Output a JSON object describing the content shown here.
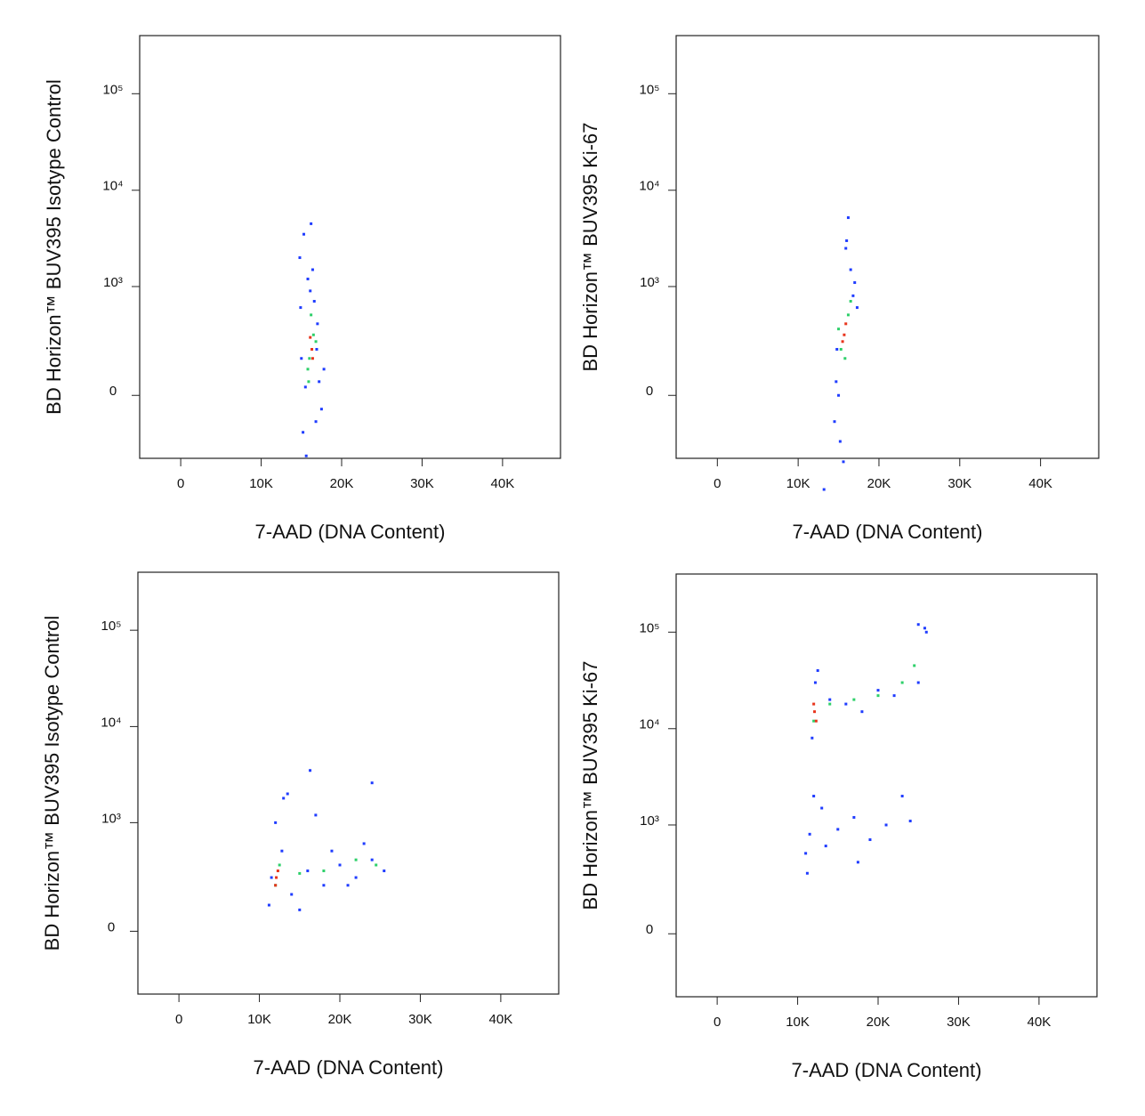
{
  "chart_data": [
    {
      "type": "scatter",
      "x_label": "7-AAD (DNA Content)",
      "y_label": "BD Horizon™ BUV395 Isotype Control",
      "yscale": "biexponential",
      "xlim": [
        -5100,
        47200
      ],
      "ylim": [
        -320,
        400000
      ],
      "xticks": [
        0,
        {
          "value": 10000,
          "label": "10K"
        },
        {
          "value": 20000,
          "label": "20K"
        },
        {
          "value": 30000,
          "label": "30K"
        },
        {
          "value": 40000,
          "label": "40K"
        }
      ],
      "yticks": [
        0,
        {
          "value": 1000,
          "label": "10³"
        },
        {
          "value": 10000,
          "label": "10⁴"
        },
        {
          "value": 100000,
          "label": "10⁵"
        }
      ],
      "series": [
        {
          "color": "#1f3cff",
          "x": [
            15200,
            16800,
            15500,
            17200,
            14900,
            16100,
            17000,
            15800,
            16400,
            15300,
            16900,
            16200,
            17500,
            15000,
            16600,
            15600,
            17800,
            14800
          ],
          "y": [
            -150,
            -100,
            30,
            50,
            600,
            900,
            400,
            1200,
            1500,
            3500,
            200,
            4500,
            -50,
            150,
            700,
            -300,
            100,
            2000
          ]
        },
        {
          "color": "#2ed06a",
          "x": [
            15800,
            16500,
            16200,
            15900,
            16800,
            16000
          ],
          "y": [
            100,
            300,
            500,
            50,
            250,
            150
          ]
        },
        {
          "color": "#e8341c",
          "x": [
            16300,
            16100,
            16400
          ],
          "y": [
            200,
            280,
            150
          ]
        }
      ]
    },
    {
      "type": "scatter",
      "x_label": "7-AAD (DNA Content)",
      "y_label": "BD Horizon™ BUV395 Ki-67",
      "yscale": "biexponential",
      "xlim": [
        -5100,
        47200
      ],
      "ylim": [
        -320,
        400000
      ],
      "xticks": [
        0,
        {
          "value": 10000,
          "label": "10K"
        },
        {
          "value": 20000,
          "label": "20K"
        },
        {
          "value": 30000,
          "label": "30K"
        },
        {
          "value": 40000,
          "label": "40K"
        }
      ],
      "yticks": [
        0,
        {
          "value": 1000,
          "label": "10³"
        },
        {
          "value": 10000,
          "label": "10⁴"
        },
        {
          "value": 100000,
          "label": "10⁵"
        }
      ],
      "series": [
        {
          "color": "#1f3cff",
          "x": [
            14500,
            16800,
            15000,
            17000,
            15200,
            16500,
            14800,
            17300,
            15900,
            16200,
            14700,
            15600,
            13200,
            16000
          ],
          "y": [
            -100,
            800,
            0,
            1100,
            -200,
            1500,
            200,
            600,
            2500,
            5200,
            50,
            -350,
            -700,
            3000
          ]
        },
        {
          "color": "#2ed06a",
          "x": [
            15300,
            16200,
            15800,
            15000,
            16500
          ],
          "y": [
            200,
            500,
            150,
            350,
            700
          ]
        },
        {
          "color": "#e8341c",
          "x": [
            15700,
            15900,
            15500
          ],
          "y": [
            300,
            400,
            250
          ]
        }
      ]
    },
    {
      "type": "scatter",
      "x_label": "7-AAD (DNA Content)",
      "y_label": "BD Horizon™ BUV395 Isotype Control",
      "yscale": "biexponential",
      "xlim": [
        -5100,
        47200
      ],
      "ylim": [
        -320,
        400000
      ],
      "xticks": [
        0,
        {
          "value": 10000,
          "label": "10K"
        },
        {
          "value": 20000,
          "label": "20K"
        },
        {
          "value": 30000,
          "label": "30K"
        },
        {
          "value": 40000,
          "label": "40K"
        }
      ],
      "yticks": [
        0,
        {
          "value": 1000,
          "label": "10³"
        },
        {
          "value": 10000,
          "label": "10⁴"
        },
        {
          "value": 100000,
          "label": "10⁵"
        }
      ],
      "series": [
        {
          "color": "#1f3cff",
          "x": [
            11200,
            12800,
            14000,
            16000,
            18000,
            20000,
            22000,
            24000,
            25500,
            13000,
            15000,
            17000,
            19000,
            21000,
            23000,
            11500,
            12000,
            16300,
            24000,
            13500
          ],
          "y": [
            100,
            500,
            150,
            300,
            200,
            350,
            250,
            400,
            300,
            1800,
            80,
            1200,
            500,
            200,
            600,
            250,
            1000,
            3500,
            2600,
            2000
          ]
        },
        {
          "color": "#2ed06a",
          "x": [
            12000,
            12500,
            18000,
            22000,
            24500,
            15000
          ],
          "y": [
            200,
            350,
            300,
            400,
            350,
            280
          ]
        },
        {
          "color": "#e8341c",
          "x": [
            12100,
            12300,
            12000
          ],
          "y": [
            250,
            300,
            200
          ]
        }
      ]
    },
    {
      "type": "scatter",
      "x_label": "7-AAD (DNA Content)",
      "y_label": "BD Horizon™ BUV395 Ki-67",
      "yscale": "biexponential",
      "xlim": [
        -5100,
        47200
      ],
      "ylim": [
        -320,
        400000
      ],
      "xticks": [
        0,
        {
          "value": 10000,
          "label": "10K"
        },
        {
          "value": 20000,
          "label": "20K"
        },
        {
          "value": 30000,
          "label": "30K"
        },
        {
          "value": 40000,
          "label": "40K"
        }
      ],
      "yticks": [
        0,
        {
          "value": 1000,
          "label": "10³"
        },
        {
          "value": 10000,
          "label": "10⁴"
        },
        {
          "value": 100000,
          "label": "10⁵"
        }
      ],
      "series": [
        {
          "color": "#1f3cff",
          "x": [
            11000,
            11500,
            12000,
            13000,
            15000,
            17000,
            19000,
            21000,
            23000,
            25000,
            25800,
            12500,
            14000,
            16000,
            18000,
            20000,
            22000,
            11800,
            12200,
            11200,
            25000,
            26000,
            13500,
            17500,
            24000
          ],
          "y": [
            500,
            800,
            2000,
            1500,
            900,
            1200,
            700,
            1000,
            2000,
            30000,
            110000,
            40000,
            20000,
            18000,
            15000,
            25000,
            22000,
            8000,
            30000,
            300,
            120000,
            100000,
            600,
            400,
            1100
          ]
        },
        {
          "color": "#2ed06a",
          "x": [
            12000,
            14000,
            17000,
            20000,
            23000,
            24500
          ],
          "y": [
            12000,
            18000,
            20000,
            22000,
            30000,
            45000
          ]
        },
        {
          "color": "#e8341c",
          "x": [
            12100,
            12000,
            12300
          ],
          "y": [
            15000,
            18000,
            12000
          ]
        }
      ]
    }
  ]
}
